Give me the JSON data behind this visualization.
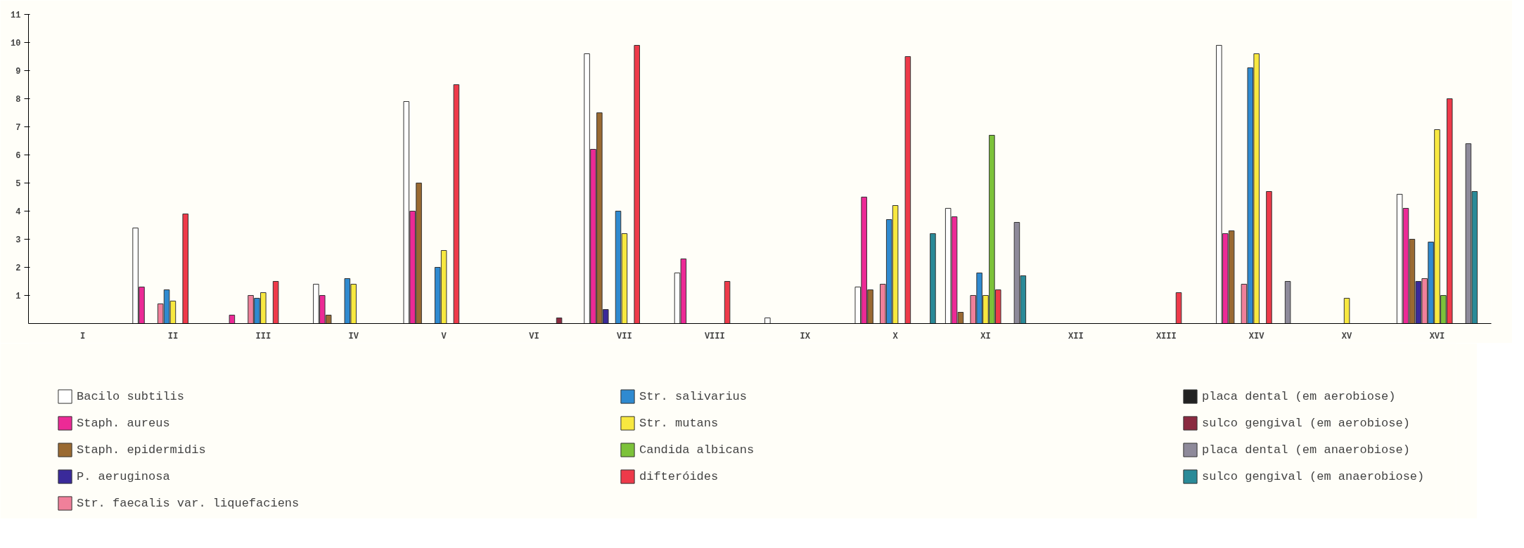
{
  "chart_data": {
    "type": "bar",
    "categories": [
      "I",
      "II",
      "III",
      "IV",
      "V",
      "VI",
      "VII",
      "VIII",
      "IX",
      "X",
      "XI",
      "XII",
      "XIII",
      "XIV",
      "XV",
      "XVI"
    ],
    "ylim": [
      0,
      11
    ],
    "yticks": [
      1,
      2,
      3,
      4,
      5,
      6,
      7,
      8,
      9,
      10,
      11
    ],
    "legend": "bottom",
    "series": [
      {
        "name": "Bacilo subtilis",
        "color": "#ffffff",
        "values": [
          null,
          3.4,
          null,
          1.4,
          7.9,
          null,
          9.6,
          1.8,
          0.2,
          1.3,
          4.1,
          null,
          null,
          9.9,
          null,
          4.6
        ]
      },
      {
        "name": "Staph. aureus",
        "color": "#ec2a96",
        "values": [
          null,
          1.3,
          0.3,
          1.0,
          4.0,
          null,
          6.2,
          2.3,
          null,
          4.5,
          3.8,
          null,
          null,
          3.2,
          null,
          4.1
        ]
      },
      {
        "name": "Staph. epidermidis",
        "color": "#9a6a32",
        "values": [
          null,
          null,
          null,
          0.3,
          5.0,
          null,
          7.5,
          null,
          null,
          1.2,
          0.4,
          null,
          null,
          3.3,
          null,
          3.0
        ]
      },
      {
        "name": "P. aeruginosa",
        "color": "#3a2a9a",
        "values": [
          null,
          null,
          null,
          null,
          null,
          null,
          0.5,
          null,
          null,
          null,
          null,
          null,
          null,
          null,
          null,
          1.5
        ]
      },
      {
        "name": "Str. faecalis var. liquefaciens",
        "color": "#f0809a",
        "values": [
          null,
          0.7,
          1.0,
          null,
          null,
          null,
          null,
          null,
          null,
          1.4,
          1.0,
          null,
          null,
          1.4,
          null,
          1.6
        ]
      },
      {
        "name": "Str. salivarius",
        "color": "#2f8ad0",
        "values": [
          null,
          1.2,
          0.9,
          1.6,
          2.0,
          null,
          4.0,
          null,
          null,
          3.7,
          1.8,
          null,
          null,
          9.1,
          null,
          2.9
        ]
      },
      {
        "name": "Str. mutans",
        "color": "#f8e840",
        "values": [
          null,
          0.8,
          1.1,
          1.4,
          2.6,
          null,
          3.2,
          null,
          null,
          4.2,
          1.0,
          null,
          null,
          9.6,
          0.9,
          6.9
        ]
      },
      {
        "name": "Candida albicans",
        "color": "#7cc23a",
        "values": [
          null,
          null,
          null,
          null,
          null,
          null,
          null,
          null,
          null,
          null,
          6.7,
          null,
          null,
          null,
          null,
          1.0
        ]
      },
      {
        "name": "difteróides",
        "color": "#ee3a4a",
        "values": [
          null,
          3.9,
          1.5,
          null,
          8.5,
          null,
          9.9,
          1.5,
          null,
          9.5,
          1.2,
          null,
          1.1,
          4.7,
          null,
          8.0
        ]
      },
      {
        "name": "placa dental (em aerobiose)",
        "color": "#222222",
        "values": [
          null,
          null,
          null,
          null,
          null,
          null,
          null,
          null,
          null,
          null,
          null,
          null,
          null,
          null,
          null,
          null
        ]
      },
      {
        "name": "sulco gengival (em aerobiose)",
        "color": "#8a2a40",
        "values": [
          null,
          null,
          null,
          null,
          null,
          0.2,
          null,
          null,
          null,
          null,
          null,
          null,
          null,
          null,
          null,
          null
        ]
      },
      {
        "name": "placa dental (em anaerobiose)",
        "color": "#8e8a9a",
        "values": [
          null,
          null,
          null,
          null,
          null,
          null,
          null,
          null,
          null,
          null,
          3.6,
          null,
          null,
          1.5,
          null,
          6.4
        ]
      },
      {
        "name": "sulco gengival (em anaerobiose)",
        "color": "#2a8a98",
        "values": [
          null,
          null,
          null,
          null,
          null,
          null,
          null,
          null,
          null,
          3.2,
          1.7,
          null,
          null,
          null,
          null,
          4.7
        ]
      }
    ]
  }
}
